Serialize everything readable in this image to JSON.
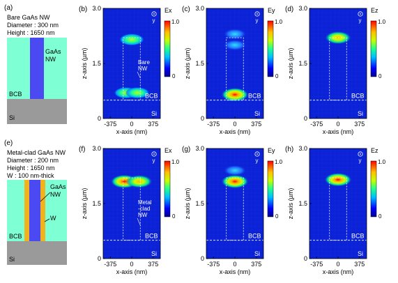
{
  "colors": {
    "bcb": "#7fffd4",
    "si": "#9a9a9a",
    "gaas": "#4b49f2",
    "metal": "#f2b21c",
    "field_bg": "#0b22d6",
    "dash": "#ffffff"
  },
  "panels": {
    "a": {
      "label": "(a)",
      "lines": [
        "Bare GaAs NW",
        "Diameter : 300 nm",
        "Height : 1650 nm"
      ],
      "nw_label": "GaAs\nNW",
      "nw_label1": "GaAs",
      "nw_label2": "NW",
      "bcb": "BCB",
      "si": "Si"
    },
    "e": {
      "label": "(e)",
      "lines": [
        "Metal-clad GaAs NW",
        "Diameter : 200 nm",
        "Height : 1650 nm",
        "W : 100 nm-thick"
      ],
      "nw_label1": "GaAs",
      "nw_label2": "NW",
      "w_label": "W",
      "bcb": "BCB",
      "si": "Si"
    },
    "b": {
      "label": "(b)",
      "comp": "Ex",
      "annot1": "Bare",
      "annot2": "NW"
    },
    "c": {
      "label": "(c)",
      "comp": "Ey"
    },
    "d": {
      "label": "(d)",
      "comp": "Ez"
    },
    "f": {
      "label": "(f)",
      "comp": "Ex",
      "annot1": "Metal",
      "annot2": "-clad",
      "annot3": "NW"
    },
    "g": {
      "label": "(g)",
      "comp": "Ey"
    },
    "h": {
      "label": "(h)",
      "comp": "Ez"
    }
  },
  "common": {
    "bcb": "BCB",
    "si": "Si",
    "y_symbol": "y",
    "xlabel": "x-axis (nm)",
    "ylabel": "z-axis (µm)",
    "xticks": [
      "-375",
      "0",
      "375"
    ],
    "yticks": [
      "0",
      "1.5",
      "3.0"
    ],
    "cb_max": "1.0",
    "cb_min": "0"
  },
  "chart_data": [
    {
      "panel": "b",
      "type": "heatmap",
      "component": "Ex",
      "xlabel": "x-axis (nm)",
      "ylabel": "z-axis (µm)",
      "xticks": [
        -375,
        0,
        375
      ],
      "yticks": [
        0,
        1.5,
        3.0
      ],
      "colorbar": [
        0,
        1.0
      ],
      "nanowire": "Bare GaAs NW",
      "hotspots": [
        {
          "x": 0,
          "z": 2.15,
          "v": 0.7
        },
        {
          "x": -100,
          "z": 0.7,
          "v": 0.6
        },
        {
          "x": 100,
          "z": 0.7,
          "v": 0.6
        }
      ]
    },
    {
      "panel": "c",
      "type": "heatmap",
      "component": "Ey",
      "xlabel": "x-axis (nm)",
      "ylabel": "z-axis (µm)",
      "xticks": [
        -375,
        0,
        375
      ],
      "yticks": [
        0,
        1.5,
        3.0
      ],
      "colorbar": [
        0,
        1.0
      ],
      "nanowire": "Bare GaAs NW",
      "hotspots": [
        {
          "x": 0,
          "z": 2.3,
          "v": 0.5
        },
        {
          "x": 0,
          "z": 2.0,
          "v": 0.5
        },
        {
          "x": 0,
          "z": 0.65,
          "v": 1.0
        }
      ]
    },
    {
      "panel": "d",
      "type": "heatmap",
      "component": "Ez",
      "xlabel": "x-axis (nm)",
      "ylabel": "z-axis (µm)",
      "xticks": [
        -375,
        0,
        375
      ],
      "yticks": [
        0,
        1.5,
        3.0
      ],
      "colorbar": [
        0,
        1.0
      ],
      "nanowire": "Bare GaAs NW",
      "hotspots": [
        {
          "x": 0,
          "z": 2.2,
          "v": 0.9
        }
      ]
    },
    {
      "panel": "f",
      "type": "heatmap",
      "component": "Ex",
      "xlabel": "x-axis (nm)",
      "ylabel": "z-axis (µm)",
      "xticks": [
        -375,
        0,
        375
      ],
      "yticks": [
        0,
        1.5,
        3.0
      ],
      "colorbar": [
        0,
        1.0
      ],
      "nanowire": "Metal-clad GaAs NW",
      "hotspots": [
        {
          "x": -130,
          "z": 2.1,
          "v": 1.0
        },
        {
          "x": 130,
          "z": 2.1,
          "v": 0.9
        }
      ]
    },
    {
      "panel": "g",
      "type": "heatmap",
      "component": "Ey",
      "xlabel": "x-axis (nm)",
      "ylabel": "z-axis (µm)",
      "xticks": [
        -375,
        0,
        375
      ],
      "yticks": [
        0,
        1.5,
        3.0
      ],
      "colorbar": [
        0,
        1.0
      ],
      "nanowire": "Metal-clad GaAs NW",
      "hotspots": [
        {
          "x": 0,
          "z": 2.1,
          "v": 1.0
        },
        {
          "x": 0,
          "z": 2.4,
          "v": 0.5
        }
      ]
    },
    {
      "panel": "h",
      "type": "heatmap",
      "component": "Ez",
      "xlabel": "x-axis (nm)",
      "ylabel": "z-axis (µm)",
      "xticks": [
        -375,
        0,
        375
      ],
      "yticks": [
        0,
        1.5,
        3.0
      ],
      "colorbar": [
        0,
        1.0
      ],
      "nanowire": "Metal-clad GaAs NW",
      "hotspots": [
        {
          "x": 0,
          "z": 2.15,
          "v": 1.0
        }
      ]
    }
  ]
}
